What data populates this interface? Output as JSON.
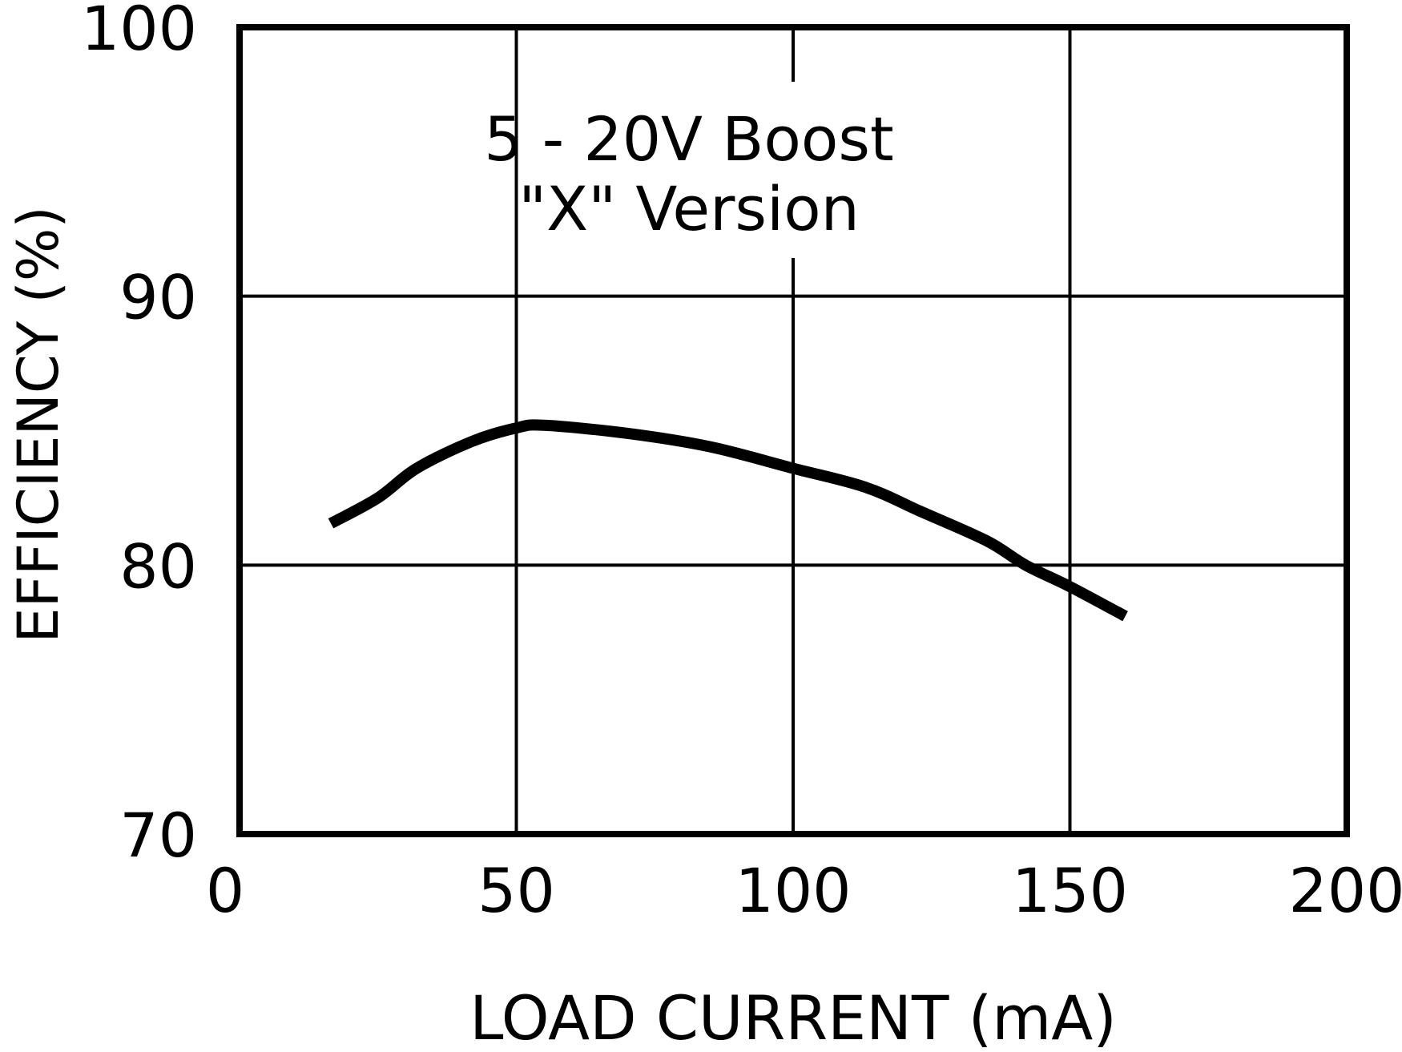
{
  "chart_data": {
    "type": "line",
    "title": "",
    "annotation": [
      "5 - 20V Boost",
      "\"X\" Version"
    ],
    "xlabel": "LOAD CURRENT (mA)",
    "ylabel": "EFFICIENCY (%)",
    "xlim": [
      0,
      200
    ],
    "ylim": [
      70,
      100
    ],
    "xticks": [
      0,
      50,
      100,
      150,
      200
    ],
    "yticks": [
      70,
      80,
      90,
      100
    ],
    "xtick_labels": [
      "0",
      "50",
      "100",
      "150",
      "200"
    ],
    "ytick_labels": [
      "70",
      "80",
      "90",
      "100"
    ],
    "grid": true,
    "legend": null,
    "series": [
      {
        "name": "5 - 20V Boost \"X\" Version",
        "color": "#000000",
        "x": [
          16.5,
          25,
          32,
          42,
          50,
          55,
          70,
          85,
          100,
          113,
          123,
          135,
          142,
          150,
          160
        ],
        "y": [
          81.55,
          82.5,
          83.6,
          84.6,
          85.1,
          85.2,
          84.9,
          84.4,
          83.6,
          82.9,
          82.0,
          80.9,
          80.0,
          79.2,
          78.1
        ]
      }
    ]
  },
  "colors": {
    "background": "#ffffff",
    "axis": "#000000",
    "grid": "#000000",
    "line": "#000000"
  }
}
